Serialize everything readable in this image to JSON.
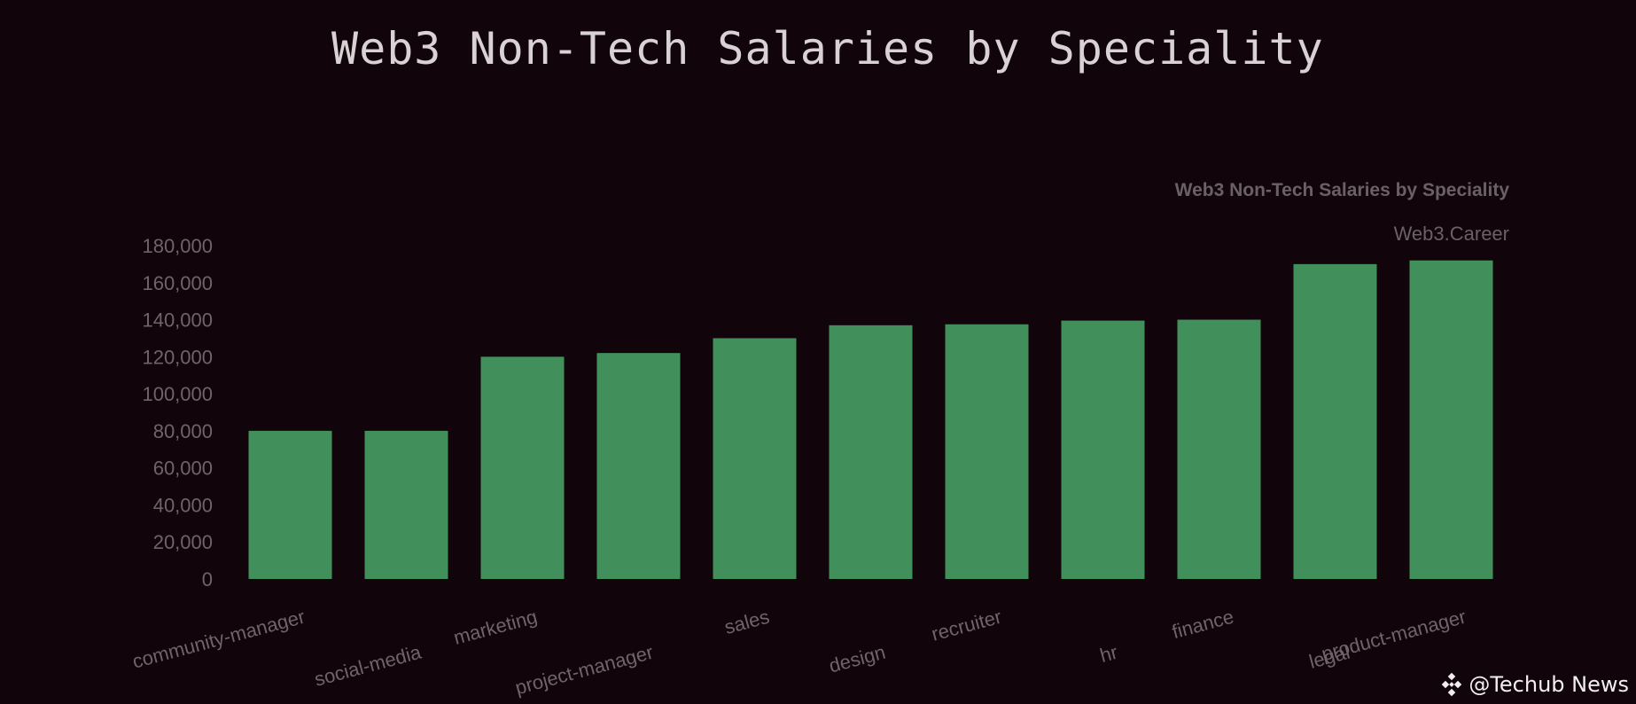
{
  "page": {
    "title": "Web3 Non-Tech Salaries by Speciality",
    "watermark": "@Techub News",
    "watermark_icon": "diamond-logo-icon"
  },
  "colors": {
    "background": "#12040b",
    "bar": "#418f5a",
    "axis_text": "#6f6468",
    "inner_title": "#6a6065",
    "title": "#d9d2d4"
  },
  "chart_data": {
    "type": "bar",
    "title": "Web3 Non-Tech Salaries by Speciality",
    "subtitle": "Web3.Career",
    "xlabel": "",
    "ylabel": "",
    "ylim": [
      0,
      180000
    ],
    "yticks": [
      0,
      20000,
      40000,
      60000,
      80000,
      100000,
      120000,
      140000,
      160000,
      180000
    ],
    "ytick_labels": [
      "0",
      "20,000",
      "40,000",
      "60,000",
      "80,000",
      "100,000",
      "120,000",
      "140,000",
      "160,000",
      "180,000"
    ],
    "grid": false,
    "categories": [
      "community-manager",
      "social-media",
      "marketing",
      "project-manager",
      "sales",
      "design",
      "recruiter",
      "hr",
      "finance",
      "legal",
      "product-manager"
    ],
    "values": [
      80000,
      80000,
      120000,
      122000,
      130000,
      137000,
      137500,
      139500,
      140000,
      170000,
      172000
    ]
  }
}
